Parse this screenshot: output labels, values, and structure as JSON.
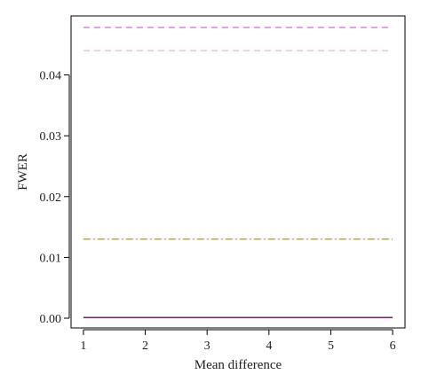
{
  "chart_data": {
    "type": "line",
    "xlabel": "Mean difference",
    "ylabel": "FWER",
    "xlim": [
      0.8,
      6.2
    ],
    "ylim": [
      -0.0016,
      0.0497
    ],
    "x_ticks": [
      "1",
      "2",
      "3",
      "4",
      "5",
      "6"
    ],
    "y_ticks": [
      "0.00",
      "0.01",
      "0.02",
      "0.03",
      "0.04"
    ],
    "grid": false,
    "legend": "none",
    "series": [
      {
        "x": [
          1,
          2,
          3,
          4,
          5,
          6
        ],
        "values": [
          0.0478,
          0.0478,
          0.0478,
          0.0478,
          0.0478,
          0.0478
        ],
        "color": "#d884d8",
        "dash": "7,5"
      },
      {
        "x": [
          1,
          2,
          3,
          4,
          5,
          6
        ],
        "values": [
          0.044,
          0.044,
          0.044,
          0.044,
          0.044,
          0.044
        ],
        "color": "#e6c8cf",
        "dash": "7,5"
      },
      {
        "x": [
          1,
          2,
          3,
          4,
          5,
          6
        ],
        "values": [
          0.013,
          0.013,
          0.013,
          0.013,
          0.013,
          0.013
        ],
        "color": "#b8b020",
        "dash": "8,3,2,3"
      },
      {
        "x": [
          1,
          2,
          3,
          4,
          5,
          6
        ],
        "values": [
          0.0001,
          0.0001,
          0.0001,
          0.0001,
          0.0001,
          0.0001
        ],
        "color": "#d4a0c8",
        "dash": "6,4"
      },
      {
        "x": [
          1,
          2,
          3,
          4,
          5,
          6
        ],
        "values": [
          0.0001,
          0.0001,
          0.0001,
          0.0001,
          0.0001,
          0.0001
        ],
        "color": "#6a2a6a",
        "dash": ""
      }
    ]
  }
}
